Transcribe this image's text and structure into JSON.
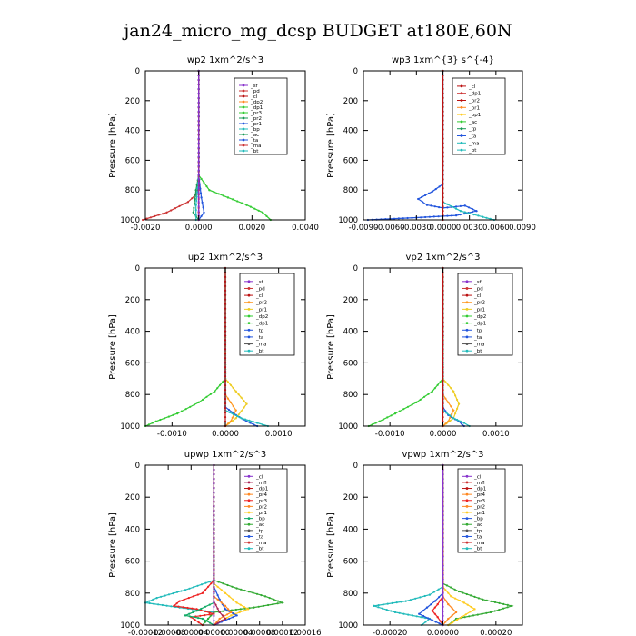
{
  "figure": {
    "title": "jan24_micro_mg_dcsp  BUDGET at180E,60N"
  },
  "chart_data": [
    {
      "id": "wp2",
      "type": "line",
      "title": "wp2   1xm^2/s^3",
      "ylabel": "Pressure [hPa]",
      "xlim": [
        -0.002,
        0.004
      ],
      "ylim": [
        1000,
        0
      ],
      "xticks": [
        -0.002,
        0.0,
        0.002,
        0.004
      ],
      "xticklabels": [
        "-0.0020",
        "0.0000",
        "0.0020",
        "0.0040"
      ],
      "yticks": [
        0,
        200,
        400,
        600,
        800,
        1000
      ],
      "yticklabels": [
        "0",
        "200",
        "400",
        "600",
        "800",
        "1000"
      ],
      "legend": [
        "_sf",
        "_pd",
        "_cl",
        "_dp2",
        "_dp1",
        "_pr3",
        "_pr2",
        "_pr1",
        "_bp",
        "_ac",
        "_ta",
        "_ma",
        "_bt"
      ],
      "series": [
        {
          "name": "_pd",
          "color": "#cc3333",
          "x": [
            0,
            0,
            0,
            0,
            -0.0001,
            -0.0004,
            -0.0012,
            -0.0021
          ],
          "y": [
            0,
            400,
            700,
            780,
            830,
            880,
            950,
            1000
          ]
        },
        {
          "name": "_dp1",
          "color": "#33cc33",
          "x": [
            0,
            0,
            0,
            0.0004,
            0.0011,
            0.0018,
            0.0024,
            0.0027
          ],
          "y": [
            0,
            400,
            700,
            800,
            850,
            900,
            950,
            1000
          ]
        },
        {
          "name": "_ac",
          "color": "#1a9955",
          "x": [
            0,
            0,
            -0.0001,
            -0.0002,
            0
          ],
          "y": [
            0,
            700,
            800,
            950,
            1000
          ]
        },
        {
          "name": "_bt",
          "color": "#22bbbb",
          "x": [
            0,
            0,
            -0.0001,
            -0.0001
          ],
          "y": [
            0,
            700,
            900,
            1000
          ]
        },
        {
          "name": "_ta",
          "color": "#2255dd",
          "x": [
            0,
            0,
            0.0001,
            0.0002,
            0
          ],
          "y": [
            0,
            700,
            850,
            950,
            1000
          ]
        },
        {
          "name": "_cl",
          "color": "#bb1111",
          "x": [
            0,
            0,
            0,
            0
          ],
          "y": [
            0,
            800,
            950,
            1000
          ]
        },
        {
          "name": "_sf",
          "color": "#8833cc",
          "x": [
            0,
            0
          ],
          "y": [
            0,
            1000
          ]
        }
      ]
    },
    {
      "id": "wp3",
      "type": "line",
      "title": "wp3   1xm^{3} s^{-4}",
      "ylabel": "Pressure [hPa]",
      "xlim": [
        -0.009,
        0.009
      ],
      "ylim": [
        1000,
        0
      ],
      "xticks": [
        -0.009,
        -0.006,
        -0.003,
        0.0,
        0.003,
        0.006,
        0.009
      ],
      "xticklabels": [
        "-0.0090",
        "-0.0060",
        "-0.0030",
        "0.0000",
        "0.0030",
        "0.0060",
        "0.0090"
      ],
      "yticks": [
        0,
        200,
        400,
        600,
        800,
        1000
      ],
      "yticklabels": [
        "0",
        "200",
        "400",
        "600",
        "800",
        "1000"
      ],
      "legend": [
        "_cl",
        "_dp1",
        "_pr2",
        "_pr1",
        "_bp1",
        "_ac",
        "_tp",
        "_ta",
        "_ma",
        "_bt"
      ],
      "series": [
        {
          "name": "_ta",
          "color": "#2255dd",
          "x": [
            0,
            0,
            -0.0012,
            -0.0028,
            -0.0018,
            0,
            0.0025,
            0.0038,
            0.0015,
            -0.003,
            -0.0085
          ],
          "y": [
            0,
            760,
            810,
            860,
            900,
            920,
            905,
            940,
            970,
            985,
            1000
          ]
        },
        {
          "name": "_bt",
          "color": "#22bbbb",
          "x": [
            0,
            0,
            0.002,
            0.0045,
            0.0058
          ],
          "y": [
            0,
            880,
            940,
            980,
            1000
          ]
        },
        {
          "name": "_cl",
          "color": "#bb1111",
          "x": [
            0,
            0
          ],
          "y": [
            0,
            1000
          ]
        }
      ]
    },
    {
      "id": "up2",
      "type": "line",
      "title": "up2   1xm^2/s^3",
      "ylabel": "Pressure [hPa]",
      "xlim": [
        -0.0015,
        0.0015
      ],
      "ylim": [
        1000,
        0
      ],
      "xticks": [
        -0.001,
        0.0,
        0.001
      ],
      "xticklabels": [
        "-0.0010",
        "0.0000",
        "0.0010"
      ],
      "yticks": [
        0,
        200,
        400,
        600,
        800,
        1000
      ],
      "yticklabels": [
        "0",
        "200",
        "400",
        "600",
        "800",
        "1000"
      ],
      "legend": [
        "_sf",
        "_pd",
        "_cl",
        "_pr2",
        "_pr1",
        "_dp2",
        "_dp1",
        "_tp",
        "_ta",
        "_ma",
        "_bt"
      ],
      "series": [
        {
          "name": "_dp1",
          "color": "#33cc33",
          "x": [
            0,
            0,
            -0.0002,
            -0.0005,
            -0.0009,
            -0.0013,
            -0.0015
          ],
          "y": [
            0,
            700,
            780,
            850,
            920,
            970,
            1000
          ]
        },
        {
          "name": "_pr1",
          "color": "#eecc22",
          "x": [
            0,
            0,
            0.0002,
            0.0004,
            0.0002,
            0
          ],
          "y": [
            0,
            700,
            780,
            860,
            950,
            1000
          ]
        },
        {
          "name": "_pr2",
          "color": "#ff9922",
          "x": [
            0,
            0,
            0.0001,
            0.0002,
            0.0001,
            0
          ],
          "y": [
            0,
            800,
            850,
            900,
            970,
            1000
          ]
        },
        {
          "name": "_ta",
          "color": "#2255dd",
          "x": [
            0,
            0,
            0.0002,
            0.0004,
            0.0006
          ],
          "y": [
            0,
            880,
            930,
            970,
            1000
          ]
        },
        {
          "name": "_bt",
          "color": "#22bbbb",
          "x": [
            0,
            0,
            0.0003,
            0.0006,
            0.0008
          ],
          "y": [
            0,
            900,
            950,
            980,
            1000
          ]
        },
        {
          "name": "_cl",
          "color": "#bb1111",
          "x": [
            0,
            0
          ],
          "y": [
            0,
            1000
          ]
        }
      ]
    },
    {
      "id": "vp2",
      "type": "line",
      "title": "vp2   1xm^2/s^3",
      "ylabel": "Pressure [hPa]",
      "xlim": [
        -0.0015,
        0.0015
      ],
      "ylim": [
        1000,
        0
      ],
      "xticks": [
        -0.001,
        0.0,
        0.001
      ],
      "xticklabels": [
        "-0.0010",
        "0.0000",
        "0.0010"
      ],
      "yticks": [
        0,
        200,
        400,
        600,
        800,
        1000
      ],
      "yticklabels": [
        "0",
        "200",
        "400",
        "600",
        "800",
        "1000"
      ],
      "legend": [
        "_sf",
        "_pd",
        "_cl",
        "_pr2",
        "_pr1",
        "_dp2",
        "_dp1",
        "_tp",
        "_ta",
        "_ma",
        "_bt"
      ],
      "series": [
        {
          "name": "_dp1",
          "color": "#33cc33",
          "x": [
            0,
            0,
            -0.0002,
            -0.0005,
            -0.0009,
            -0.0012,
            -0.0014
          ],
          "y": [
            0,
            700,
            780,
            850,
            920,
            970,
            1000
          ]
        },
        {
          "name": "_pr1",
          "color": "#eecc22",
          "x": [
            0,
            0,
            0.0002,
            0.0003,
            0.0002,
            0
          ],
          "y": [
            0,
            700,
            780,
            860,
            950,
            1000
          ]
        },
        {
          "name": "_pr2",
          "color": "#ff9922",
          "x": [
            0,
            0,
            0.0001,
            0.0002,
            0.0001,
            0
          ],
          "y": [
            0,
            800,
            850,
            900,
            970,
            1000
          ]
        },
        {
          "name": "_ta",
          "color": "#2255dd",
          "x": [
            0,
            0,
            0.0001,
            0.0003,
            0.0004
          ],
          "y": [
            0,
            880,
            930,
            970,
            1000
          ]
        },
        {
          "name": "_bt",
          "color": "#22bbbb",
          "x": [
            0,
            0,
            0.0002,
            0.0004,
            0.0005
          ],
          "y": [
            0,
            900,
            950,
            980,
            1000
          ]
        },
        {
          "name": "_cl",
          "color": "#bb1111",
          "x": [
            0,
            0
          ],
          "y": [
            0,
            1000
          ]
        }
      ]
    },
    {
      "id": "upwp",
      "type": "line",
      "title": "upwp   1xm^2/s^3",
      "ylabel": "Pressure [hPa]",
      "xlim": [
        -0.00012,
        0.00016
      ],
      "ylim": [
        1000,
        0
      ],
      "xticks": [
        -0.00012,
        -8e-05,
        -4e-05,
        0.0,
        4e-05,
        8e-05,
        0.00012,
        0.00016
      ],
      "xticklabels": [
        "-0.00012",
        "-0.00008",
        "-0.00004",
        "0.00000",
        "0.00004",
        "0.00008",
        "0.00012",
        "0.00016"
      ],
      "yticks": [
        0,
        200,
        400,
        600,
        800,
        1000
      ],
      "yticklabels": [
        "0",
        "200",
        "400",
        "600",
        "800",
        "1000"
      ],
      "legend": [
        "_cl",
        "_mfl",
        "_dp1",
        "_pr4",
        "_pr3",
        "_pr2",
        "_pr1",
        "_bp",
        "_ac",
        "_tp",
        "_ta",
        "_ma",
        "_bt"
      ],
      "series": [
        {
          "name": "_bt",
          "color": "#22bbbb",
          "x": [
            0,
            0,
            -5e-05,
            -0.0001,
            -0.00012,
            -6e-05,
            0,
            -2e-05
          ],
          "y": [
            0,
            720,
            780,
            830,
            860,
            890,
            920,
            1000
          ]
        },
        {
          "name": "_ac",
          "color": "#33aa33",
          "x": [
            0,
            0,
            4e-05,
            9e-05,
            0.00012,
            7e-05,
            0,
            -2e-05
          ],
          "y": [
            0,
            720,
            770,
            820,
            860,
            890,
            920,
            1000
          ]
        },
        {
          "name": "_pr3",
          "color": "#ee2222",
          "x": [
            0,
            0,
            -2e-05,
            -6e-05,
            -7e-05,
            -3e-05,
            0,
            -4e-05,
            -2e-05
          ],
          "y": [
            0,
            720,
            800,
            850,
            880,
            900,
            930,
            950,
            1000
          ]
        },
        {
          "name": "_pr1",
          "color": "#ffcc22",
          "x": [
            0,
            0,
            2e-05,
            4e-05,
            6e-05,
            3e-05,
            0
          ],
          "y": [
            0,
            740,
            800,
            860,
            900,
            940,
            1000
          ]
        },
        {
          "name": "_ta",
          "color": "#2255dd",
          "x": [
            0,
            0,
            1e-05,
            2e-05,
            4e-05,
            2e-05,
            0
          ],
          "y": [
            0,
            760,
            840,
            900,
            940,
            970,
            1000
          ]
        },
        {
          "name": "_bp",
          "color": "#11aa66",
          "x": [
            0,
            0,
            -3e-05,
            -5e-05,
            -2e-05,
            0
          ],
          "y": [
            0,
            860,
            910,
            940,
            960,
            1000
          ]
        },
        {
          "name": "_pr2",
          "color": "#ff8822",
          "x": [
            0,
            0,
            2e-05,
            3e-05,
            1e-05,
            0
          ],
          "y": [
            0,
            820,
            880,
            920,
            960,
            1000
          ]
        },
        {
          "name": "_mfl",
          "color": "#aa2255",
          "x": [
            0,
            0,
            1e-05,
            2e-05,
            0
          ],
          "y": [
            0,
            850,
            920,
            960,
            1000
          ]
        },
        {
          "name": "_cl",
          "color": "#8833cc",
          "x": [
            0,
            0
          ],
          "y": [
            0,
            1000
          ]
        }
      ]
    },
    {
      "id": "vpwp",
      "type": "line",
      "title": "vpwp   1xm^2/s^3",
      "ylabel": "Pressure [hPa]",
      "xlim": [
        -0.0003,
        0.0003
      ],
      "ylim": [
        1000,
        0
      ],
      "xticks": [
        -0.0002,
        0.0,
        0.0002
      ],
      "xticklabels": [
        "-0.00020",
        "0.00000",
        "0.00020"
      ],
      "yticks": [
        0,
        200,
        400,
        600,
        800,
        1000
      ],
      "yticklabels": [
        "0",
        "200",
        "400",
        "600",
        "800",
        "1000"
      ],
      "legend": [
        "_cl",
        "_mfl",
        "_dp1",
        "_pr4",
        "_pr3",
        "_pr2",
        "_pr1",
        "_bp",
        "_ac",
        "_tp",
        "_ta",
        "_ma",
        "_bt"
      ],
      "series": [
        {
          "name": "_bt",
          "color": "#22bbbb",
          "x": [
            0,
            0,
            -5e-05,
            -0.00014,
            -0.00026,
            -0.00018,
            -5e-05,
            -8e-05
          ],
          "y": [
            0,
            760,
            810,
            850,
            880,
            920,
            960,
            1000
          ]
        },
        {
          "name": "_ac",
          "color": "#33aa33",
          "x": [
            0,
            0,
            6e-05,
            0.00015,
            0.00026,
            0.00018,
            5e-05,
            2e-05
          ],
          "y": [
            0,
            740,
            790,
            840,
            880,
            920,
            960,
            1000
          ]
        },
        {
          "name": "_pr1",
          "color": "#ffcc22",
          "x": [
            0,
            0,
            3e-05,
            8e-05,
            0.00012,
            7e-05,
            2e-05
          ],
          "y": [
            0,
            760,
            820,
            860,
            900,
            950,
            1000
          ]
        },
        {
          "name": "_ta",
          "color": "#2255dd",
          "x": [
            0,
            0,
            -3e-05,
            -6e-05,
            -9e-05,
            -4e-05,
            0
          ],
          "y": [
            0,
            800,
            850,
            890,
            930,
            970,
            1000
          ]
        },
        {
          "name": "_pr3",
          "color": "#ee2222",
          "x": [
            0,
            0,
            -2e-05,
            -4e-05,
            -2e-05,
            0
          ],
          "y": [
            0,
            820,
            870,
            910,
            950,
            1000
          ]
        },
        {
          "name": "_pr2",
          "color": "#ff8822",
          "x": [
            0,
            0,
            2e-05,
            5e-05,
            2e-05,
            0
          ],
          "y": [
            0,
            820,
            870,
            920,
            960,
            1000
          ]
        },
        {
          "name": "_cl",
          "color": "#8833cc",
          "x": [
            0,
            0
          ],
          "y": [
            0,
            1000
          ]
        }
      ]
    }
  ]
}
